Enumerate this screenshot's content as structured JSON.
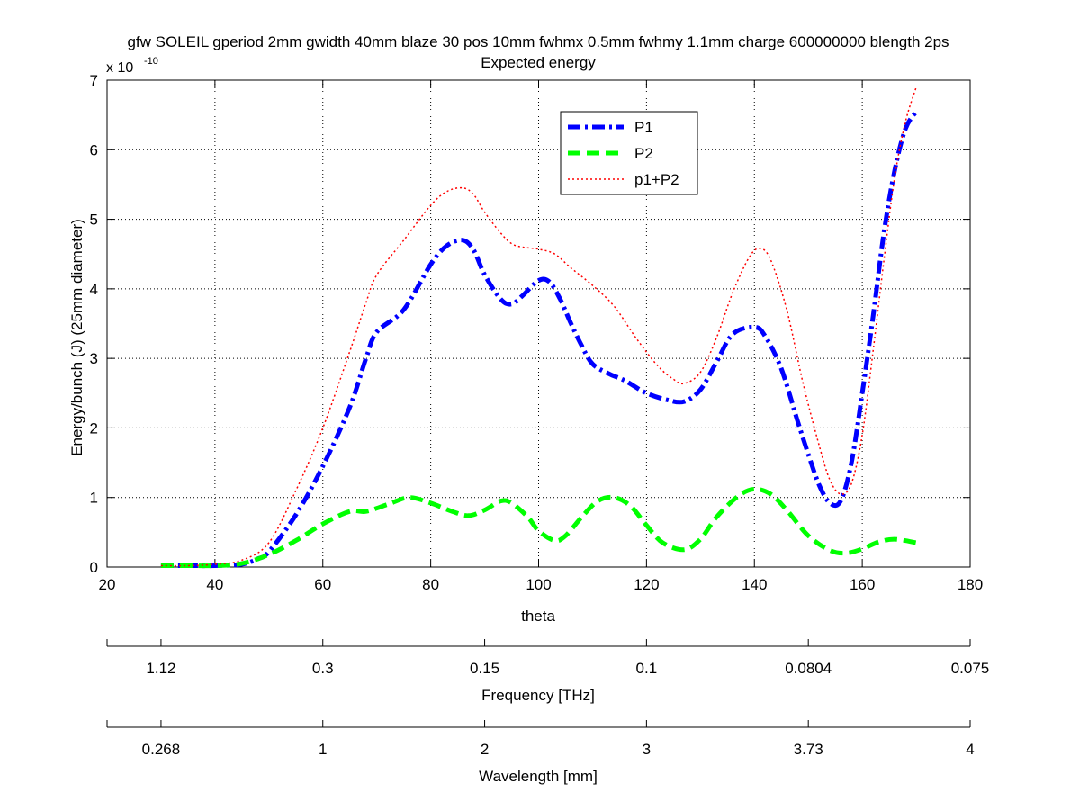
{
  "chart_data": {
    "type": "line",
    "title": "gfw SOLEIL gperiod 2mm gwidth 40mm blaze 30 pos 10mm fwhmx 0.5mm fwhmy 1.1mm charge 600000000 blength 2ps",
    "subtitle": "Expected energy",
    "xlabel": "theta",
    "ylabel": "Energy/bunch (J) (25mm diameter)",
    "y_multiplier": {
      "base": "x 10",
      "exponent": "-10"
    },
    "xlim": [
      20,
      180
    ],
    "ylim": [
      0,
      7
    ],
    "x_ticks": [
      20,
      40,
      60,
      80,
      100,
      120,
      140,
      160,
      180
    ],
    "y_ticks": [
      0,
      1,
      2,
      3,
      4,
      5,
      6,
      7
    ],
    "grid": true,
    "legend_position": "top-right inside",
    "secondary_axes": [
      {
        "label": "Frequency [THz]",
        "ticks": [
          {
            "theta": 30,
            "label": "1.12"
          },
          {
            "theta": 60,
            "label": "0.3"
          },
          {
            "theta": 90,
            "label": "0.15"
          },
          {
            "theta": 120,
            "label": "0.1"
          },
          {
            "theta": 150,
            "label": "0.0804"
          },
          {
            "theta": 180,
            "label": "0.075"
          }
        ]
      },
      {
        "label": "Wavelength [mm]",
        "ticks": [
          {
            "theta": 30,
            "label": "0.268"
          },
          {
            "theta": 60,
            "label": "1"
          },
          {
            "theta": 90,
            "label": "2"
          },
          {
            "theta": 120,
            "label": "3"
          },
          {
            "theta": 150,
            "label": "3.73"
          },
          {
            "theta": 180,
            "label": "4"
          }
        ]
      }
    ],
    "series": [
      {
        "name": "P1",
        "color": "#0000ff",
        "style": "dashdot",
        "x": [
          30,
          35,
          40,
          45,
          48,
          50,
          55,
          60,
          65,
          68,
          70,
          75,
          80,
          83,
          86,
          88,
          90,
          93,
          95,
          97,
          100,
          102,
          104,
          106,
          108,
          110,
          113,
          116,
          120,
          124,
          127,
          130,
          133,
          136,
          140,
          142,
          145,
          148,
          150,
          152,
          154,
          156,
          158,
          160,
          162,
          164,
          166,
          168,
          170
        ],
        "y": [
          0.02,
          0.02,
          0.02,
          0.04,
          0.12,
          0.22,
          0.75,
          1.45,
          2.3,
          3.0,
          3.38,
          3.7,
          4.35,
          4.62,
          4.7,
          4.55,
          4.2,
          3.85,
          3.78,
          3.9,
          4.12,
          4.1,
          3.85,
          3.5,
          3.18,
          2.92,
          2.78,
          2.68,
          2.5,
          2.4,
          2.38,
          2.55,
          2.95,
          3.35,
          3.45,
          3.32,
          2.85,
          2.1,
          1.62,
          1.18,
          0.92,
          0.95,
          1.5,
          2.5,
          3.6,
          4.8,
          5.7,
          6.3,
          6.55
        ]
      },
      {
        "name": "P2",
        "color": "#00ff00",
        "style": "dashed",
        "x": [
          30,
          35,
          40,
          45,
          50,
          55,
          60,
          65,
          68,
          72,
          76,
          80,
          84,
          87,
          90,
          93,
          95,
          98,
          100,
          103,
          105,
          108,
          111,
          114,
          117,
          120,
          123,
          127,
          130,
          133,
          137,
          140,
          143,
          146,
          150,
          154,
          157,
          160,
          163,
          166,
          170
        ],
        "y": [
          0.02,
          0.02,
          0.02,
          0.05,
          0.18,
          0.38,
          0.62,
          0.8,
          0.8,
          0.9,
          1.0,
          0.92,
          0.8,
          0.74,
          0.82,
          0.95,
          0.92,
          0.72,
          0.52,
          0.38,
          0.45,
          0.72,
          0.95,
          1.0,
          0.88,
          0.6,
          0.35,
          0.25,
          0.4,
          0.72,
          1.02,
          1.12,
          1.05,
          0.82,
          0.45,
          0.24,
          0.2,
          0.26,
          0.36,
          0.4,
          0.35
        ]
      },
      {
        "name": "p1+P2",
        "color": "#ff0000",
        "style": "dotted",
        "x": [
          30,
          35,
          40,
          45,
          50,
          55,
          60,
          65,
          68,
          70,
          75,
          80,
          83,
          86,
          88,
          90,
          93,
          95,
          97,
          100,
          103,
          106,
          110,
          114,
          118,
          122,
          125,
          127,
          130,
          133,
          136,
          139,
          141,
          143,
          146,
          149,
          152,
          154,
          156,
          158,
          160,
          162,
          164,
          166,
          168,
          170
        ],
        "y": [
          0.02,
          0.02,
          0.04,
          0.1,
          0.35,
          1.1,
          2.0,
          3.1,
          3.8,
          4.2,
          4.7,
          5.2,
          5.4,
          5.45,
          5.35,
          5.1,
          4.8,
          4.65,
          4.6,
          4.57,
          4.5,
          4.3,
          4.05,
          3.75,
          3.3,
          2.9,
          2.7,
          2.64,
          2.8,
          3.3,
          3.95,
          4.45,
          4.58,
          4.42,
          3.7,
          2.65,
          1.75,
          1.25,
          1.05,
          1.2,
          1.9,
          3.1,
          4.4,
          5.6,
          6.4,
          6.9
        ]
      }
    ]
  }
}
